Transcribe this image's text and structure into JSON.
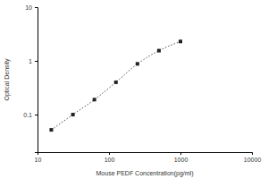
{
  "chart_data": {
    "type": "line",
    "log": true,
    "x_label": "Mouse PEDF Concentration(pg/ml)",
    "y_label": "Optical Density",
    "x": [
      15.6,
      31.25,
      62.5,
      125,
      250,
      500,
      1000
    ],
    "values": [
      0.052,
      0.1,
      0.19,
      0.4,
      0.88,
      1.55,
      2.3
    ],
    "color": "#222222",
    "marker": "square",
    "line_style": "dotted",
    "xlim": [
      10,
      10000
    ],
    "xticks": [
      10,
      100,
      1000,
      10000
    ],
    "ylim": [
      0.02,
      10
    ],
    "yticks": [
      0.1,
      1,
      10
    ],
    "grid": false
  }
}
